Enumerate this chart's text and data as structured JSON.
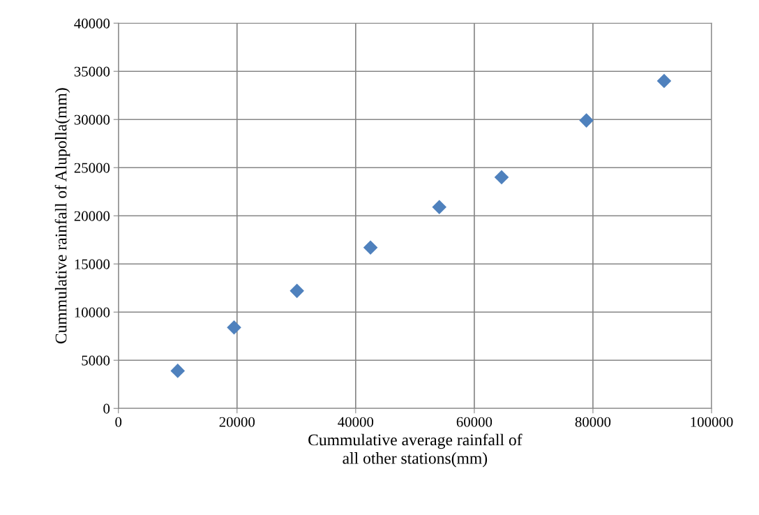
{
  "chart_data": {
    "type": "scatter",
    "xlabel": "Cummulative average rainfall of\nall other stations(mm)",
    "ylabel": "Cummulative rainfall of Alupolla(mm)",
    "x": [
      10000,
      19500,
      30100,
      42500,
      54100,
      64600,
      78900,
      92000
    ],
    "series": [
      {
        "color": "#4f81bd",
        "values": [
          3900,
          8400,
          12200,
          16700,
          20900,
          24000,
          29900,
          34000
        ]
      }
    ],
    "xlim": [
      0,
      100000
    ],
    "xticks": [
      0,
      20000,
      40000,
      60000,
      80000,
      100000
    ],
    "ylim": [
      0,
      40000
    ],
    "yticks": [
      0,
      5000,
      10000,
      15000,
      20000,
      25000,
      30000,
      35000,
      40000
    ],
    "grid": true,
    "marker": "diamond"
  }
}
